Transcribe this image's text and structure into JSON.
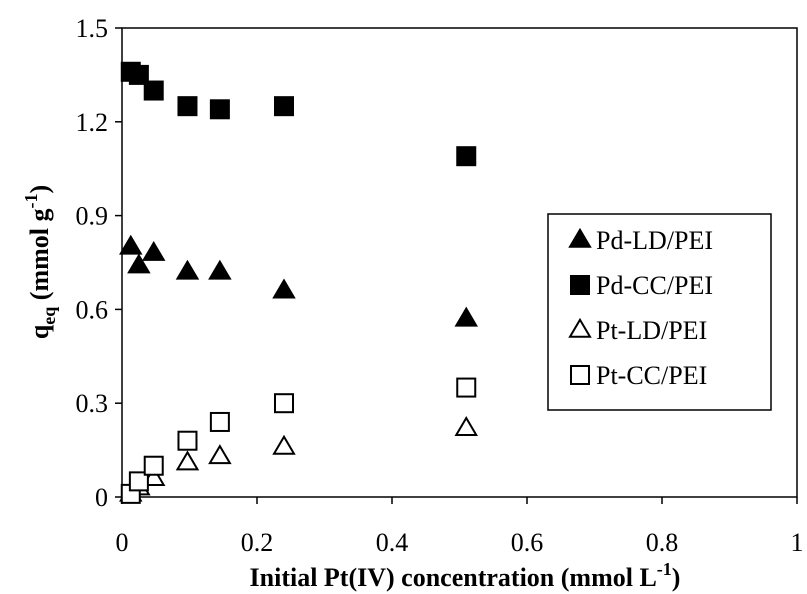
{
  "chart_data": {
    "type": "scatter",
    "title": "",
    "xlabel": {
      "main": "Initial Pt(IV) concentration (mmol L",
      "sup": "-1",
      "tail": ")"
    },
    "ylabel": {
      "q": "q",
      "sub": "eq",
      "main": " (mmol g",
      "sup": "-1",
      "tail": ")"
    },
    "xlim": [
      0,
      1
    ],
    "ylim": [
      0,
      1.5
    ],
    "xticks": [
      0,
      0.2,
      0.4,
      0.6,
      0.8,
      1
    ],
    "xtick_labels": [
      "0",
      "0.2",
      "0.4",
      "0.6",
      "0.8",
      "1"
    ],
    "yticks": [
      0,
      0.3,
      0.6,
      0.9,
      1.2,
      1.5
    ],
    "ytick_labels": [
      "0",
      "0.3",
      "0.6",
      "0.9",
      "1.2",
      "1.5"
    ],
    "grid": false,
    "legend_position": "right",
    "series": [
      {
        "name": "Pd-LD/PEI",
        "marker": "triangle",
        "filled": true,
        "x": [
          0.013,
          0.025,
          0.047,
          0.097,
          0.145,
          0.24,
          0.51
        ],
        "y": [
          0.8,
          0.74,
          0.78,
          0.72,
          0.72,
          0.66,
          0.57
        ]
      },
      {
        "name": "Pd-CC/PEI",
        "marker": "square",
        "filled": true,
        "x": [
          0.013,
          0.025,
          0.047,
          0.097,
          0.145,
          0.24,
          0.51
        ],
        "y": [
          1.36,
          1.35,
          1.3,
          1.25,
          1.24,
          1.25,
          1.09
        ]
      },
      {
        "name": "Pt-LD/PEI",
        "marker": "triangle",
        "filled": false,
        "x": [
          0.013,
          0.025,
          0.047,
          0.097,
          0.145,
          0.24,
          0.51
        ],
        "y": [
          0.01,
          0.03,
          0.06,
          0.11,
          0.13,
          0.16,
          0.22
        ]
      },
      {
        "name": "Pt-CC/PEI",
        "marker": "square",
        "filled": false,
        "x": [
          0.013,
          0.025,
          0.047,
          0.097,
          0.145,
          0.24,
          0.51
        ],
        "y": [
          0.01,
          0.05,
          0.1,
          0.18,
          0.24,
          0.3,
          0.35
        ]
      }
    ]
  }
}
